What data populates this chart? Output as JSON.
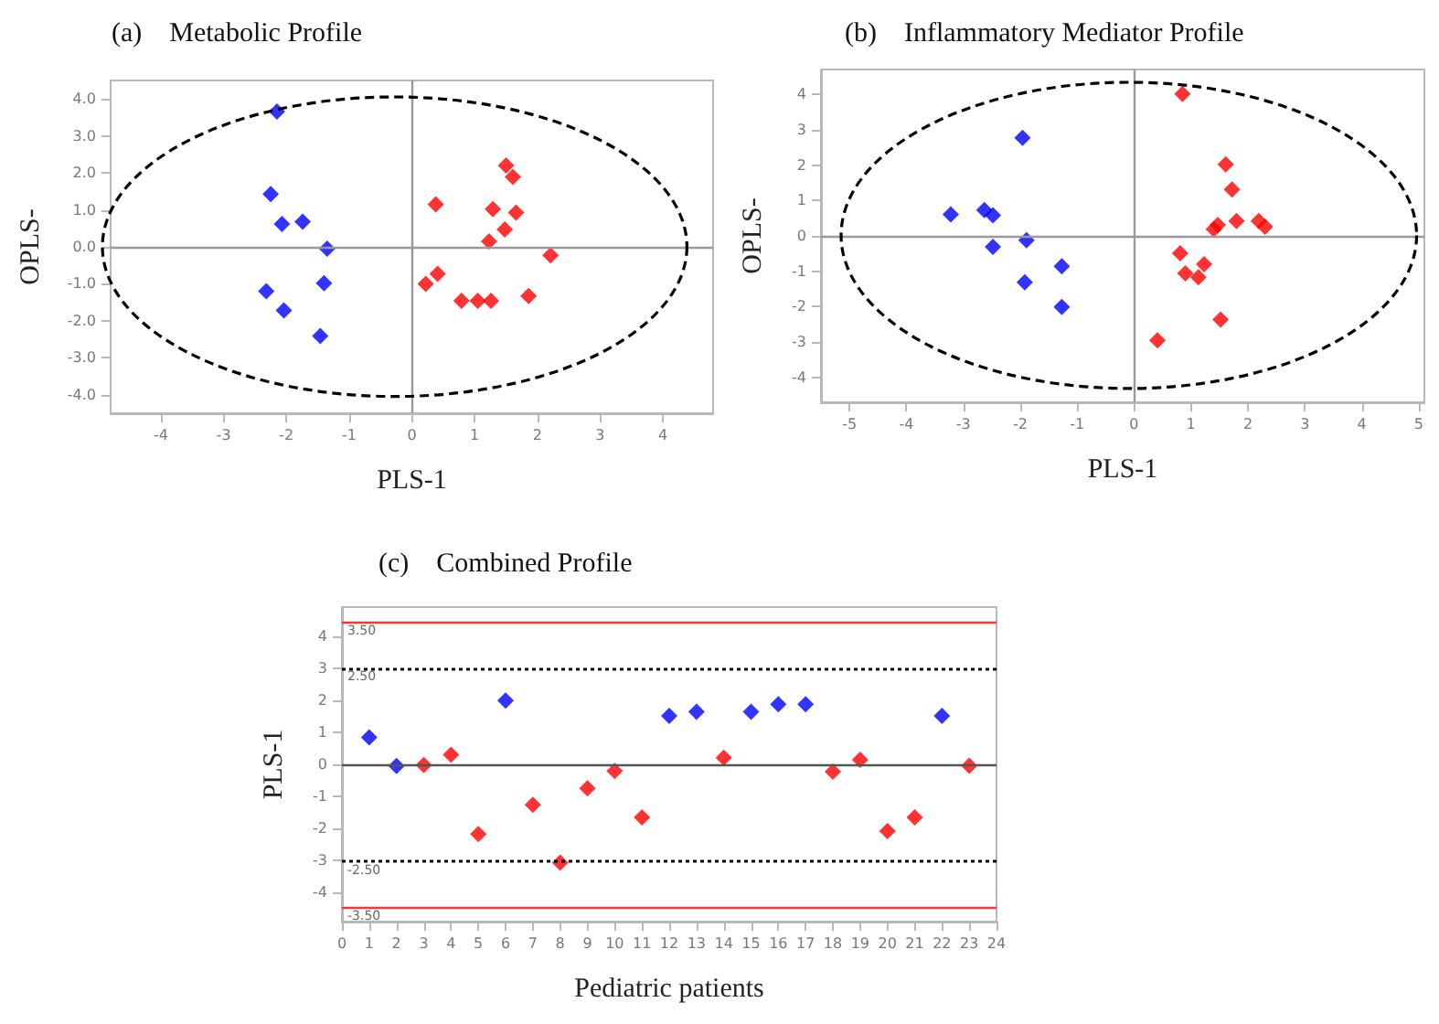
{
  "chart_data": [
    {
      "type": "scatter",
      "title": "(a)    Metabolic Profile",
      "xlabel": "PLS-1",
      "ylabel": "OPLS-",
      "marker": "diamond",
      "xlim": [
        -4.8,
        4.8
      ],
      "xticks": [
        -4,
        -3,
        -2,
        -1,
        0,
        1,
        2,
        3,
        4
      ],
      "ylim": [
        -4.5,
        4.5
      ],
      "yticks": [
        {
          "value": -4,
          "label": "-4.0"
        },
        {
          "value": -3,
          "label": "-3.0"
        },
        {
          "value": -2,
          "label": "-2.0"
        },
        {
          "value": -1,
          "label": "-1.0"
        },
        {
          "value": 0,
          "label": "0.0"
        },
        {
          "value": 1,
          "label": "1.0"
        },
        {
          "value": 2,
          "label": "2.0"
        },
        {
          "value": 3,
          "label": "3.0"
        },
        {
          "value": 4,
          "label": "4.0"
        }
      ],
      "ref_lines": [
        {
          "axis": "x",
          "value": 0,
          "color": "#999999"
        },
        {
          "axis": "y",
          "value": 0,
          "color": "#999999"
        }
      ],
      "series": [
        {
          "color": "#0000ff",
          "x": [
            -2.15,
            -2.25,
            -2.07,
            -1.74,
            -1.35,
            -1.4,
            -2.32,
            -2.04,
            -1.46
          ],
          "values": [
            3.66,
            1.43,
            0.62,
            0.68,
            -0.05,
            -0.98,
            -1.2,
            -1.72,
            -2.41
          ]
        },
        {
          "color": "#ff0000",
          "x": [
            1.5,
            1.61,
            0.38,
            1.29,
            1.66,
            1.48,
            1.23,
            2.21,
            0.22,
            0.41,
            0.79,
            1.05,
            1.26,
            1.86
          ],
          "values": [
            2.2,
            1.89,
            1.15,
            1.02,
            0.93,
            0.47,
            0.15,
            -0.23,
            -1.0,
            -0.73,
            -1.46,
            -1.46,
            -1.46,
            -1.33
          ]
        }
      ]
    },
    {
      "type": "scatter",
      "title": "(b)    Inflammatory Mediator Profile",
      "xlabel": "PLS-1",
      "ylabel": "OPLS-",
      "marker": "diamond",
      "xlim": [
        -5.5,
        5.1
      ],
      "xticks": [
        -5,
        -4,
        -3,
        -2,
        -1,
        0,
        1,
        2,
        3,
        4,
        5
      ],
      "ylim": [
        -4.7,
        4.7
      ],
      "yticks": [
        -4,
        -3,
        -2,
        -1,
        0,
        1,
        2,
        3,
        4
      ],
      "ref_lines": [
        {
          "axis": "x",
          "value": 0,
          "color": "#999999"
        },
        {
          "axis": "y",
          "value": 0,
          "color": "#999999"
        }
      ],
      "series": [
        {
          "color": "#0000ff",
          "x": [
            -3.22,
            -2.63,
            -2.48,
            -2.48,
            -1.96,
            -1.89,
            -1.92,
            -1.27,
            -1.27
          ],
          "values": [
            0.61,
            0.73,
            0.58,
            -0.31,
            2.77,
            -0.12,
            -1.31,
            -0.86,
            -2.01
          ]
        },
        {
          "color": "#ff0000",
          "x": [
            0.85,
            1.61,
            1.72,
            1.8,
            1.47,
            1.4,
            2.19,
            2.3,
            0.81,
            1.23,
            0.9,
            1.13,
            1.52,
            0.41
          ],
          "values": [
            4.01,
            2.02,
            1.31,
            0.42,
            0.31,
            0.19,
            0.42,
            0.26,
            -0.49,
            -0.8,
            -1.06,
            -1.17,
            -2.36,
            -2.95
          ]
        }
      ]
    },
    {
      "type": "scatter",
      "title": "(c)    Combined Profile",
      "xlabel": "Pediatric patients",
      "ylabel": "PLS-1",
      "marker": "diamond",
      "xlim": [
        0,
        24
      ],
      "xticks": [
        0,
        1,
        2,
        3,
        4,
        5,
        6,
        7,
        8,
        9,
        10,
        11,
        12,
        13,
        14,
        15,
        16,
        17,
        18,
        19,
        20,
        21,
        22,
        23,
        24
      ],
      "ylim": [
        -4.9,
        4.9
      ],
      "yticks": [
        -4,
        -3,
        -2,
        -1,
        0,
        1,
        2,
        3,
        4
      ],
      "ref_lines": [
        {
          "axis": "y",
          "value": 0,
          "color": "#555555"
        },
        {
          "axis": "y",
          "value": 3,
          "color": "#000000",
          "line_style": "dotted"
        },
        {
          "axis": "y",
          "value": -3,
          "color": "#000000",
          "line_style": "dotted"
        },
        {
          "axis": "y",
          "value": 4.45,
          "color": "#ff3333"
        },
        {
          "axis": "y",
          "value": -4.45,
          "color": "#ff3333"
        }
      ],
      "annotations": [
        "3.50",
        "2.50",
        "-2.50",
        "-3.50"
      ],
      "series": [
        {
          "color": "#0000ff",
          "x": [
            1,
            2,
            6,
            12,
            13,
            15,
            16,
            17,
            22
          ],
          "values": [
            0.84,
            -0.05,
            1.99,
            1.51,
            1.64,
            1.64,
            1.87,
            1.87,
            1.51
          ]
        },
        {
          "color": "#ff0000",
          "x": [
            3,
            4,
            5,
            7,
            8,
            9,
            10,
            11,
            14,
            18,
            19,
            20,
            21,
            23
          ],
          "values": [
            -0.02,
            0.3,
            -2.17,
            -1.26,
            -3.06,
            -0.75,
            -0.21,
            -1.65,
            0.21,
            -0.23,
            0.14,
            -2.08,
            -1.65,
            -0.04
          ]
        }
      ]
    }
  ]
}
